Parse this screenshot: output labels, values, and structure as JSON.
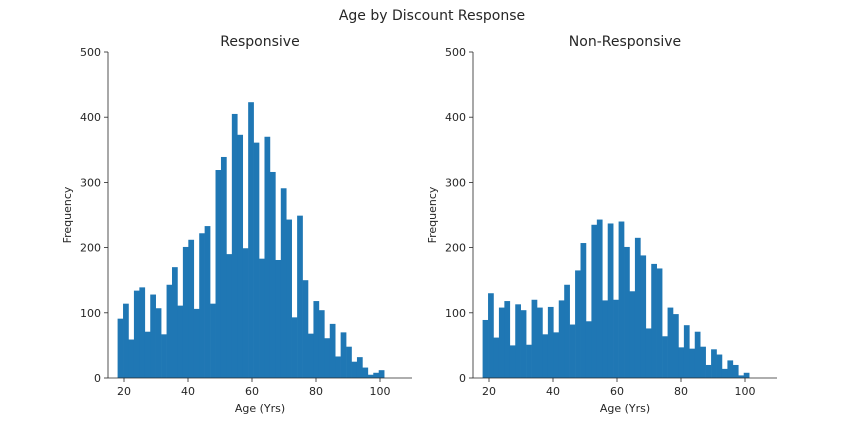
{
  "figure": {
    "suptitle": "Age by Discount Response"
  },
  "chart_data": [
    {
      "type": "bar",
      "title": "Responsive",
      "xlabel": "Age (Yrs)",
      "ylabel": "Frequency",
      "xlim": [
        15,
        110
      ],
      "ylim": [
        0,
        500
      ],
      "xticks": [
        20,
        40,
        60,
        80,
        100
      ],
      "yticks": [
        0,
        100,
        200,
        300,
        400,
        500
      ],
      "bin_start": 18,
      "bin_width": 1.7,
      "color": "#1f77b4",
      "grid": false,
      "values": [
        91,
        114,
        59,
        134,
        139,
        71,
        128,
        107,
        67,
        143,
        170,
        111,
        201,
        212,
        106,
        222,
        233,
        114,
        319,
        339,
        190,
        405,
        373,
        199,
        423,
        361,
        183,
        370,
        316,
        181,
        291,
        243,
        93,
        249,
        150,
        68,
        118,
        104,
        61,
        83,
        33,
        70,
        48,
        25,
        32,
        16,
        5,
        8,
        12
      ]
    },
    {
      "type": "bar",
      "title": "Non-Responsive",
      "xlabel": "Age (Yrs)",
      "ylabel": "Frequency",
      "xlim": [
        15,
        110
      ],
      "ylim": [
        0,
        500
      ],
      "xticks": [
        20,
        40,
        60,
        80,
        100
      ],
      "yticks": [
        0,
        100,
        200,
        300,
        400,
        500
      ],
      "bin_start": 18,
      "bin_width": 1.7,
      "color": "#1f77b4",
      "grid": false,
      "values": [
        89,
        130,
        62,
        108,
        118,
        50,
        113,
        104,
        51,
        120,
        108,
        67,
        109,
        70,
        119,
        143,
        82,
        165,
        207,
        87,
        235,
        243,
        119,
        237,
        120,
        240,
        201,
        133,
        215,
        188,
        76,
        175,
        168,
        64,
        108,
        98,
        47,
        81,
        45,
        71,
        48,
        20,
        44,
        36,
        14,
        27,
        20,
        4,
        8
      ]
    }
  ]
}
